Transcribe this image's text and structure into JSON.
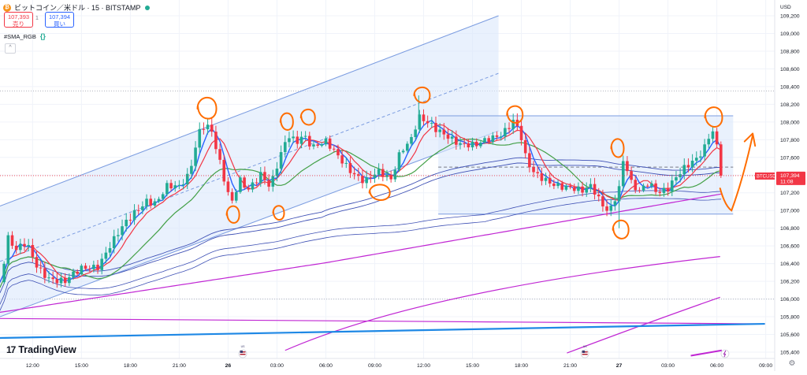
{
  "header": {
    "symbol": "ビットコイン／米ドル · 15 · BITSTAMP",
    "sell_price": "107,393",
    "sell_label": "売り",
    "spread": "1",
    "buy_price": "107,394",
    "buy_label": "買い",
    "indicator": "#SMA_RGB",
    "indicator_icon": "{}",
    "collapse_icon": "^"
  },
  "currency": "USD",
  "logo_text": "TradingView",
  "colors": {
    "up": "#22ab94",
    "down": "#f23645",
    "annotation": "#ff6d00",
    "sma_blue": "#2962ff",
    "sma_red": "#f23645",
    "sma_green": "#43a047",
    "sma_navy": "#3f51b5",
    "sma_purple": "#c026d3",
    "sma_skyblue": "#1e88e5",
    "channel_fill": "#dbe7fb",
    "channel_line": "#7b9ce0"
  },
  "chart_data": {
    "type": "candlestick",
    "symbol": "BTCUSD",
    "timeframe": "15",
    "exchange": "BITSTAMP",
    "yaxis": {
      "min": 105400,
      "max": 109200,
      "ticks": [
        "109,200",
        "109,000",
        "108,800",
        "108,600",
        "108,400",
        "108,200",
        "108,000",
        "107,800",
        "107,600",
        "107,400",
        "107,200",
        "107,000",
        "106,800",
        "106,600",
        "106,400",
        "106,200",
        "106,000",
        "105,800",
        "105,600",
        "105,400"
      ]
    },
    "xaxis": {
      "ticks": [
        {
          "label": "12:00",
          "hour": 12
        },
        {
          "label": "15:00",
          "hour": 15
        },
        {
          "label": "18:00",
          "hour": 18
        },
        {
          "label": "21:00",
          "hour": 21
        },
        {
          "label": "26",
          "hour": 24
        },
        {
          "label": "03:00",
          "hour": 27
        },
        {
          "label": "06:00",
          "hour": 30
        },
        {
          "label": "09:00",
          "hour": 33
        },
        {
          "label": "12:00",
          "hour": 36
        },
        {
          "label": "15:00",
          "hour": 39
        },
        {
          "label": "18:00",
          "hour": 42
        },
        {
          "label": "21:00",
          "hour": 45
        },
        {
          "label": "27",
          "hour": 48
        },
        {
          "label": "03:00",
          "hour": 51
        },
        {
          "label": "06:00",
          "hour": 54
        },
        {
          "label": "09:00",
          "hour": 57
        }
      ],
      "event_hours": [
        24.9,
        45.9
      ],
      "event_label": "US"
    },
    "last_price": {
      "label": "BTCUSD",
      "price": "107,394",
      "countdown": "11:08",
      "value": 107394
    },
    "price_points": [
      {
        "h": 10.0,
        "p": 106200
      },
      {
        "h": 10.5,
        "p": 106700
      },
      {
        "h": 11.0,
        "p": 106550
      },
      {
        "h": 11.6,
        "p": 106620
      },
      {
        "h": 12.3,
        "p": 106350
      },
      {
        "h": 13.0,
        "p": 106250
      },
      {
        "h": 14.0,
        "p": 106200
      },
      {
        "h": 15.0,
        "p": 106330
      },
      {
        "h": 16.0,
        "p": 106380
      },
      {
        "h": 16.7,
        "p": 106600
      },
      {
        "h": 17.5,
        "p": 106800
      },
      {
        "h": 18.2,
        "p": 106950
      },
      {
        "h": 19.0,
        "p": 107120
      },
      {
        "h": 19.6,
        "p": 107100
      },
      {
        "h": 20.2,
        "p": 107270
      },
      {
        "h": 21.0,
        "p": 107250
      },
      {
        "h": 21.6,
        "p": 107400
      },
      {
        "h": 22.2,
        "p": 107900
      },
      {
        "h": 22.6,
        "p": 108000
      },
      {
        "h": 23.0,
        "p": 107900
      },
      {
        "h": 23.4,
        "p": 107600
      },
      {
        "h": 23.8,
        "p": 107300
      },
      {
        "h": 24.2,
        "p": 107050
      },
      {
        "h": 24.7,
        "p": 107350
      },
      {
        "h": 25.2,
        "p": 107250
      },
      {
        "h": 26.0,
        "p": 107420
      },
      {
        "h": 26.6,
        "p": 107250
      },
      {
        "h": 27.2,
        "p": 107600
      },
      {
        "h": 27.7,
        "p": 107850
      },
      {
        "h": 28.2,
        "p": 107780
      },
      {
        "h": 28.6,
        "p": 107880
      },
      {
        "h": 29.2,
        "p": 107720
      },
      {
        "h": 30.0,
        "p": 107760
      },
      {
        "h": 30.8,
        "p": 107600
      },
      {
        "h": 31.6,
        "p": 107450
      },
      {
        "h": 32.4,
        "p": 107330
      },
      {
        "h": 33.2,
        "p": 107420
      },
      {
        "h": 34.0,
        "p": 107350
      },
      {
        "h": 34.6,
        "p": 107700
      },
      {
        "h": 35.2,
        "p": 107800
      },
      {
        "h": 35.7,
        "p": 108050
      },
      {
        "h": 36.2,
        "p": 107980
      },
      {
        "h": 36.8,
        "p": 107900
      },
      {
        "h": 37.5,
        "p": 107850
      },
      {
        "h": 38.3,
        "p": 107760
      },
      {
        "h": 39.2,
        "p": 107720
      },
      {
        "h": 40.0,
        "p": 107800
      },
      {
        "h": 40.8,
        "p": 107880
      },
      {
        "h": 41.5,
        "p": 108020
      },
      {
        "h": 41.9,
        "p": 107900
      },
      {
        "h": 42.3,
        "p": 107550
      },
      {
        "h": 42.8,
        "p": 107400
      },
      {
        "h": 43.5,
        "p": 107350
      },
      {
        "h": 44.2,
        "p": 107300
      },
      {
        "h": 45.0,
        "p": 107250
      },
      {
        "h": 45.7,
        "p": 107200
      },
      {
        "h": 46.3,
        "p": 107280
      },
      {
        "h": 46.9,
        "p": 107100
      },
      {
        "h": 47.4,
        "p": 107000
      },
      {
        "h": 48.0,
        "p": 107250
      },
      {
        "h": 48.3,
        "p": 107600
      },
      {
        "h": 48.7,
        "p": 107300
      },
      {
        "h": 49.2,
        "p": 107200
      },
      {
        "h": 49.8,
        "p": 107330
      },
      {
        "h": 50.4,
        "p": 107220
      },
      {
        "h": 51.0,
        "p": 107250
      },
      {
        "h": 51.6,
        "p": 107380
      },
      {
        "h": 52.2,
        "p": 107500
      },
      {
        "h": 52.8,
        "p": 107600
      },
      {
        "h": 53.3,
        "p": 107750
      },
      {
        "h": 53.7,
        "p": 107950
      },
      {
        "h": 54.1,
        "p": 107650
      },
      {
        "h": 54.4,
        "p": 107394
      }
    ]
  },
  "drawings": {
    "rising_channel": {
      "x1": 10.0,
      "x2": 40.6,
      "lower1": 105800,
      "lower2": 107900,
      "upper1": 107050,
      "upper2": 109200
    },
    "horizontal_box": {
      "x1": 36.9,
      "x2": 55.0,
      "top": 108070,
      "bottom": 106960
    },
    "dotted_levels": [
      108350,
      106000
    ],
    "dashed_midline_price": 107490
  }
}
